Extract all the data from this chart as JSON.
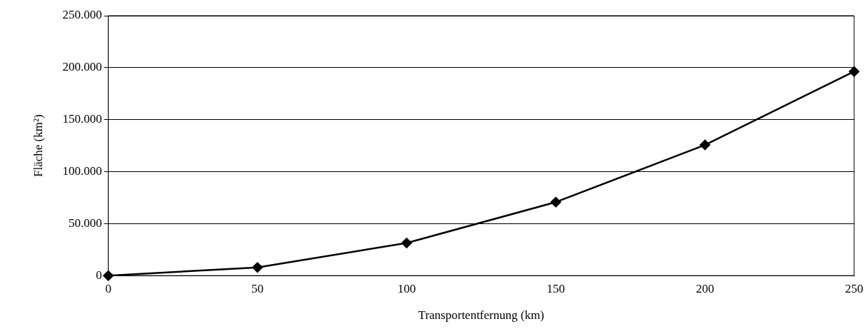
{
  "chart_data": {
    "type": "line",
    "xlabel": "Transportentfernung (km)",
    "ylabel": "Fläche (km²)",
    "x": [
      0,
      50,
      100,
      150,
      200,
      250
    ],
    "series": [
      {
        "color": "#000000",
        "values": [
          0,
          7900,
          31400,
          70700,
          125700,
          196300
        ]
      }
    ],
    "xlim": [
      0,
      250
    ],
    "xticks": [
      0,
      50,
      100,
      150,
      200,
      250
    ],
    "ylim": [
      0,
      250000
    ],
    "yticks": [
      0,
      {
        "value": 50000,
        "label": "50.000"
      },
      {
        "value": 100000,
        "label": "100.000"
      },
      {
        "value": 150000,
        "label": "150.000"
      },
      {
        "value": 200000,
        "label": "200.000"
      },
      {
        "value": 250000,
        "label": "250.000"
      }
    ],
    "grid": "y",
    "legend": false,
    "marker": "diamond",
    "line_style": "solid"
  }
}
